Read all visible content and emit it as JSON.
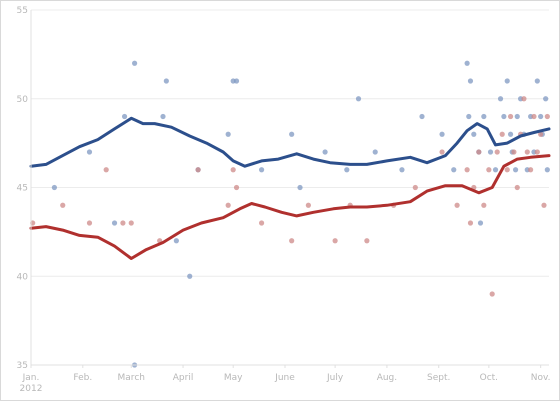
{
  "chart_data": {
    "type": "line",
    "title": "",
    "xlabel": "",
    "ylabel": "",
    "ylim": [
      35,
      55
    ],
    "xlim": [
      "2012-01-01",
      "2012-11-06"
    ],
    "y_ticks": [
      "35",
      "40",
      "45",
      "50",
      "55"
    ],
    "x_ticks": [
      {
        "date": "2012-01-01",
        "label": "Jan.",
        "sublabel": "2012"
      },
      {
        "date": "2012-02-01",
        "label": "Feb."
      },
      {
        "date": "2012-03-01",
        "label": "March"
      },
      {
        "date": "2012-04-01",
        "label": "April"
      },
      {
        "date": "2012-05-01",
        "label": "May"
      },
      {
        "date": "2012-06-01",
        "label": "June"
      },
      {
        "date": "2012-07-01",
        "label": "July"
      },
      {
        "date": "2012-08-01",
        "label": "Aug."
      },
      {
        "date": "2012-09-01",
        "label": "Sept."
      },
      {
        "date": "2012-10-01",
        "label": "Oct."
      },
      {
        "date": "2012-11-01",
        "label": "Nov."
      }
    ],
    "grid": {
      "horizontal": true,
      "vertical": false
    },
    "colors": {
      "blue": "#2c4f8c",
      "red": "#b0302e",
      "blue_point": "#7f98c2",
      "red_point": "#cd8a88"
    },
    "series": [
      {
        "color": "blue",
        "trend": [
          [
            "2012-01-01",
            46.2
          ],
          [
            "2012-01-10",
            46.3
          ],
          [
            "2012-01-20",
            46.8
          ],
          [
            "2012-01-30",
            47.3
          ],
          [
            "2012-02-10",
            47.7
          ],
          [
            "2012-02-20",
            48.3
          ],
          [
            "2012-03-01",
            48.9
          ],
          [
            "2012-03-08",
            48.6
          ],
          [
            "2012-03-15",
            48.6
          ],
          [
            "2012-03-25",
            48.4
          ],
          [
            "2012-04-05",
            47.9
          ],
          [
            "2012-04-15",
            47.5
          ],
          [
            "2012-04-25",
            47.0
          ],
          [
            "2012-05-01",
            46.5
          ],
          [
            "2012-05-08",
            46.2
          ],
          [
            "2012-05-18",
            46.5
          ],
          [
            "2012-05-28",
            46.6
          ],
          [
            "2012-06-08",
            46.9
          ],
          [
            "2012-06-18",
            46.6
          ],
          [
            "2012-06-28",
            46.4
          ],
          [
            "2012-07-10",
            46.3
          ],
          [
            "2012-07-20",
            46.3
          ],
          [
            "2012-08-01",
            46.5
          ],
          [
            "2012-08-15",
            46.7
          ],
          [
            "2012-08-25",
            46.4
          ],
          [
            "2012-09-05",
            46.8
          ],
          [
            "2012-09-12",
            47.5
          ],
          [
            "2012-09-18",
            48.2
          ],
          [
            "2012-09-24",
            48.6
          ],
          [
            "2012-09-30",
            48.3
          ],
          [
            "2012-10-05",
            47.4
          ],
          [
            "2012-10-12",
            47.5
          ],
          [
            "2012-10-20",
            47.9
          ],
          [
            "2012-10-28",
            48.1
          ],
          [
            "2012-11-06",
            48.3
          ]
        ],
        "polls": [
          [
            "2012-01-15",
            45
          ],
          [
            "2012-02-05",
            47
          ],
          [
            "2012-02-20",
            43
          ],
          [
            "2012-02-26",
            49
          ],
          [
            "2012-03-03",
            52
          ],
          [
            "2012-03-03",
            35
          ],
          [
            "2012-03-20",
            49
          ],
          [
            "2012-03-22",
            51
          ],
          [
            "2012-03-28",
            42
          ],
          [
            "2012-04-05",
            40
          ],
          [
            "2012-04-10",
            46
          ],
          [
            "2012-04-28",
            48
          ],
          [
            "2012-05-01",
            51
          ],
          [
            "2012-05-03",
            51
          ],
          [
            "2012-05-18",
            46
          ],
          [
            "2012-06-05",
            48
          ],
          [
            "2012-06-10",
            45
          ],
          [
            "2012-06-25",
            47
          ],
          [
            "2012-07-08",
            46
          ],
          [
            "2012-07-15",
            50
          ],
          [
            "2012-07-25",
            47
          ],
          [
            "2012-08-10",
            46
          ],
          [
            "2012-08-22",
            49
          ],
          [
            "2012-09-03",
            48
          ],
          [
            "2012-09-10",
            46
          ],
          [
            "2012-09-18",
            52
          ],
          [
            "2012-09-19",
            49
          ],
          [
            "2012-09-20",
            51
          ],
          [
            "2012-09-22",
            48
          ],
          [
            "2012-09-25",
            47
          ],
          [
            "2012-09-26",
            43
          ],
          [
            "2012-09-28",
            49
          ],
          [
            "2012-10-02",
            47
          ],
          [
            "2012-10-05",
            46
          ],
          [
            "2012-10-08",
            50
          ],
          [
            "2012-10-10",
            49
          ],
          [
            "2012-10-12",
            51
          ],
          [
            "2012-10-14",
            48
          ],
          [
            "2012-10-15",
            47
          ],
          [
            "2012-10-17",
            46
          ],
          [
            "2012-10-18",
            49
          ],
          [
            "2012-10-20",
            50
          ],
          [
            "2012-10-22",
            48
          ],
          [
            "2012-10-24",
            46
          ],
          [
            "2012-10-26",
            49
          ],
          [
            "2012-10-28",
            47
          ],
          [
            "2012-10-30",
            51
          ],
          [
            "2012-11-01",
            49
          ],
          [
            "2012-11-02",
            48
          ],
          [
            "2012-11-04",
            50
          ],
          [
            "2012-11-05",
            46
          ]
        ]
      },
      {
        "color": "red",
        "trend": [
          [
            "2012-01-01",
            42.7
          ],
          [
            "2012-01-10",
            42.8
          ],
          [
            "2012-01-20",
            42.6
          ],
          [
            "2012-01-30",
            42.3
          ],
          [
            "2012-02-10",
            42.2
          ],
          [
            "2012-02-20",
            41.7
          ],
          [
            "2012-03-01",
            41.0
          ],
          [
            "2012-03-10",
            41.5
          ],
          [
            "2012-03-20",
            41.9
          ],
          [
            "2012-04-01",
            42.6
          ],
          [
            "2012-04-12",
            43.0
          ],
          [
            "2012-04-25",
            43.3
          ],
          [
            "2012-05-05",
            43.8
          ],
          [
            "2012-05-12",
            44.1
          ],
          [
            "2012-05-20",
            43.9
          ],
          [
            "2012-05-30",
            43.6
          ],
          [
            "2012-06-08",
            43.4
          ],
          [
            "2012-06-18",
            43.6
          ],
          [
            "2012-06-30",
            43.8
          ],
          [
            "2012-07-10",
            43.9
          ],
          [
            "2012-07-20",
            43.9
          ],
          [
            "2012-08-01",
            44.0
          ],
          [
            "2012-08-15",
            44.2
          ],
          [
            "2012-08-25",
            44.8
          ],
          [
            "2012-09-05",
            45.1
          ],
          [
            "2012-09-15",
            45.1
          ],
          [
            "2012-09-25",
            44.7
          ],
          [
            "2012-10-03",
            45.0
          ],
          [
            "2012-10-10",
            46.2
          ],
          [
            "2012-10-18",
            46.6
          ],
          [
            "2012-10-26",
            46.7
          ],
          [
            "2012-11-06",
            46.8
          ]
        ],
        "polls": [
          [
            "2012-01-02",
            43
          ],
          [
            "2012-01-20",
            44
          ],
          [
            "2012-02-05",
            43
          ],
          [
            "2012-02-15",
            46
          ],
          [
            "2012-02-25",
            43
          ],
          [
            "2012-03-01",
            43
          ],
          [
            "2012-03-18",
            42
          ],
          [
            "2012-04-10",
            46
          ],
          [
            "2012-04-28",
            44
          ],
          [
            "2012-05-01",
            46
          ],
          [
            "2012-05-03",
            45
          ],
          [
            "2012-05-18",
            43
          ],
          [
            "2012-06-05",
            42
          ],
          [
            "2012-06-15",
            44
          ],
          [
            "2012-07-01",
            42
          ],
          [
            "2012-07-10",
            44
          ],
          [
            "2012-07-20",
            42
          ],
          [
            "2012-08-05",
            44
          ],
          [
            "2012-08-18",
            45
          ],
          [
            "2012-09-03",
            47
          ],
          [
            "2012-09-12",
            44
          ],
          [
            "2012-09-18",
            46
          ],
          [
            "2012-09-20",
            43
          ],
          [
            "2012-09-22",
            45
          ],
          [
            "2012-09-25",
            47
          ],
          [
            "2012-09-28",
            44
          ],
          [
            "2012-10-01",
            46
          ],
          [
            "2012-10-03",
            39
          ],
          [
            "2012-10-06",
            47
          ],
          [
            "2012-10-09",
            48
          ],
          [
            "2012-10-12",
            46
          ],
          [
            "2012-10-14",
            49
          ],
          [
            "2012-10-16",
            47
          ],
          [
            "2012-10-18",
            45
          ],
          [
            "2012-10-20",
            48
          ],
          [
            "2012-10-22",
            50
          ],
          [
            "2012-10-24",
            47
          ],
          [
            "2012-10-26",
            46
          ],
          [
            "2012-10-28",
            49
          ],
          [
            "2012-10-30",
            47
          ],
          [
            "2012-11-01",
            48
          ],
          [
            "2012-11-03",
            44
          ],
          [
            "2012-11-05",
            49
          ]
        ]
      }
    ]
  }
}
